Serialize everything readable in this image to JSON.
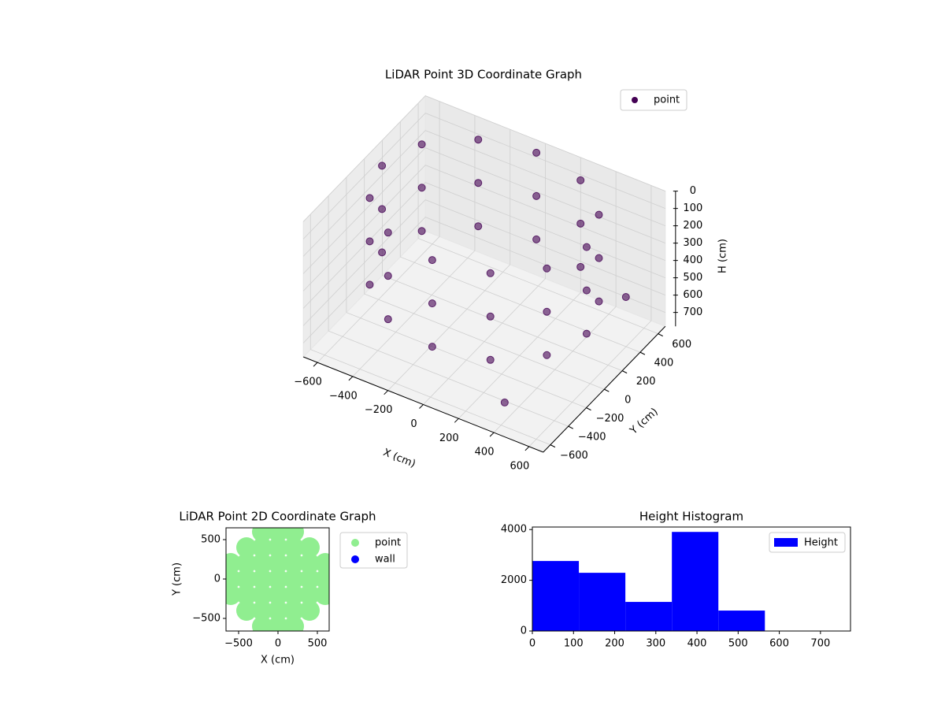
{
  "chart_data": [
    {
      "type": "scatter3d",
      "title": "LiDAR Point 3D Coordinate Graph",
      "xlabel": "X (cm)",
      "ylabel": "Y (cm)",
      "zlabel": "H (cm)",
      "xlim": [
        -680,
        680
      ],
      "ylim": [
        -680,
        680
      ],
      "zlim": [
        0,
        780
      ],
      "z_inverted": true,
      "grid": true,
      "legend": "upper right",
      "xticks": [
        {
          "value": -600,
          "label": "−600"
        },
        {
          "value": -400,
          "label": "−400"
        },
        {
          "value": -200,
          "label": "−200"
        },
        0,
        200,
        400,
        600
      ],
      "yticks": [
        {
          "value": -600,
          "label": "−600"
        },
        {
          "value": -400,
          "label": "−400"
        },
        {
          "value": -200,
          "label": "−200"
        },
        0,
        200,
        400,
        600
      ],
      "zticks": [
        0,
        100,
        200,
        300,
        400,
        500,
        600,
        700
      ],
      "series": [
        {
          "name": "point",
          "color": "#440154",
          "x": [
            580,
            502,
            290,
            0,
            -290,
            -502,
            -580,
            -502,
            -290,
            0,
            290,
            502,
            580,
            502,
            290,
            0,
            -290,
            -502,
            -580,
            -502,
            -290,
            0,
            290,
            502,
            580,
            502,
            290,
            0,
            -290,
            -502,
            -580,
            -502,
            -290,
            0,
            290,
            502,
            650,
            380
          ],
          "y": [
            0,
            290,
            502,
            580,
            502,
            290,
            0,
            -290,
            -502,
            -580,
            -502,
            -290,
            0,
            290,
            502,
            580,
            502,
            290,
            0,
            -290,
            -502,
            -580,
            -502,
            -290,
            0,
            290,
            502,
            580,
            502,
            290,
            0,
            -290,
            -502,
            -580,
            -502,
            -290,
            300,
            -520
          ],
          "z": [
            0,
            0,
            0,
            0,
            0,
            0,
            0,
            0,
            0,
            0,
            0,
            0,
            250,
            250,
            250,
            250,
            250,
            250,
            250,
            250,
            250,
            250,
            250,
            250,
            500,
            500,
            500,
            500,
            500,
            500,
            500,
            500,
            500,
            500,
            500,
            500,
            420,
            700
          ]
        }
      ]
    },
    {
      "type": "scatter",
      "title": "LiDAR Point 2D Coordinate Graph",
      "xlabel": "X (cm)",
      "ylabel": "Y (cm)",
      "xlim": [
        -660,
        650
      ],
      "ylim": [
        -660,
        650
      ],
      "legend": "outside right",
      "xticks": [
        {
          "value": -500,
          "label": "−500"
        },
        0,
        500
      ],
      "yticks": [
        {
          "value": -500,
          "label": "−500"
        },
        0,
        500
      ],
      "series": [
        {
          "name": "point",
          "color": "#90ee90",
          "x": [
            -200,
            0,
            200,
            -400,
            -200,
            0,
            200,
            400,
            -600,
            -400,
            -200,
            0,
            200,
            400,
            600,
            -600,
            -400,
            -200,
            0,
            200,
            400,
            600,
            -600,
            -400,
            -200,
            0,
            200,
            400,
            600,
            -400,
            -200,
            0,
            200,
            400,
            -200,
            0,
            200
          ],
          "y": [
            600,
            600,
            600,
            400,
            400,
            400,
            400,
            400,
            200,
            200,
            200,
            200,
            200,
            200,
            200,
            0,
            0,
            0,
            0,
            0,
            0,
            0,
            -200,
            -200,
            -200,
            -200,
            -200,
            -200,
            -200,
            -400,
            -400,
            -400,
            -400,
            -400,
            -600,
            -600,
            -600
          ]
        },
        {
          "name": "wall",
          "color": "#0000ff",
          "x": [],
          "y": []
        }
      ]
    },
    {
      "type": "histogram",
      "title": "Height Histogram",
      "legend": "upper right",
      "xlim": [
        0,
        773
      ],
      "ylim": [
        0,
        4100
      ],
      "xticks": [
        0,
        100,
        200,
        300,
        400,
        500,
        600,
        700
      ],
      "yticks": [
        0,
        2000,
        4000
      ],
      "series": [
        {
          "name": "Height",
          "color": "#0000ff",
          "bins": [
            0,
            113,
            226,
            339,
            452,
            565
          ],
          "counts": [
            2760,
            2295,
            1147,
            3907,
            806
          ]
        }
      ]
    }
  ]
}
